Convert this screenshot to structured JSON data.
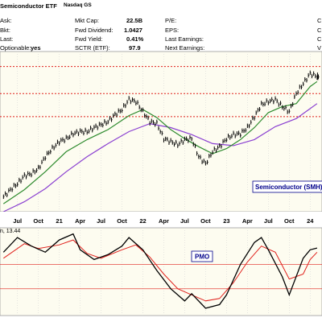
{
  "header": {
    "title": "Semiconductor ETF",
    "exchange": "Nasdaq GS",
    "ask_label": "Ask:",
    "bid_label": "Bkt:",
    "last_label": "Last:",
    "optionable_label": "Optionable:",
    "optionable_value": "yes",
    "mktcap_label": "Mkt Cap:",
    "mktcap_value": "22.5B",
    "fwd_div_label": "Fwd Dividend:",
    "fwd_div_value": "1.0427",
    "fwd_yield_label": "Fwd Yield:",
    "fwd_yield_value": "0.41%",
    "sctr_label": "SCTR (ETF):",
    "sctr_value": "97.9",
    "pe_label": "P/E:",
    "eps_label": "EPS:",
    "last_earnings_label": "Last Earnings:",
    "next_earnings_label": "Next Earnings:",
    "right_clip": [
      "C",
      "C",
      "C",
      "V"
    ]
  },
  "colors": {
    "price_panel_bg": "#fdfcf0",
    "price": "#000000",
    "sma_fast": "#2e8b2e",
    "sma_slow": "#8a3fd1",
    "resistance": "#e0201b",
    "pmo": "#000000",
    "pmo_signal": "#e0201b",
    "label_bg": "#ffffff",
    "label_border": "#00008b",
    "label_text": "#00008b"
  },
  "chart_data": [
    {
      "type": "line",
      "panel": "price",
      "annotation": "Semiconductor (SMH)",
      "x_tick_labels": [
        "Jul",
        "Oct",
        "21",
        "Apr",
        "Jul",
        "Oct",
        "22",
        "Apr",
        "Jul",
        "Oct",
        "23",
        "Apr",
        "Jul",
        "Oct",
        "24"
      ],
      "x_range": [
        "2020-05",
        "2024-02"
      ],
      "horizontal_levels": [
        185,
        158,
        135
      ],
      "price_series": [
        [
          "2020-05",
          55
        ],
        [
          "2020-06",
          62
        ],
        [
          "2020-07",
          68
        ],
        [
          "2020-08",
          76
        ],
        [
          "2020-09",
          78
        ],
        [
          "2020-10",
          83
        ],
        [
          "2020-11",
          95
        ],
        [
          "2020-12",
          103
        ],
        [
          "2021-01",
          110
        ],
        [
          "2021-02",
          113
        ],
        [
          "2021-03",
          118
        ],
        [
          "2021-04",
          120
        ],
        [
          "2021-05",
          120
        ],
        [
          "2021-06",
          124
        ],
        [
          "2021-07",
          127
        ],
        [
          "2021-08",
          130
        ],
        [
          "2021-09",
          137
        ],
        [
          "2021-10",
          142
        ],
        [
          "2021-11",
          152
        ],
        [
          "2021-12",
          150
        ],
        [
          "2022-01",
          140
        ],
        [
          "2022-02",
          130
        ],
        [
          "2022-03",
          128
        ],
        [
          "2022-04",
          113
        ],
        [
          "2022-05",
          110
        ],
        [
          "2022-06",
          107
        ],
        [
          "2022-07",
          112
        ],
        [
          "2022-08",
          113
        ],
        [
          "2022-09",
          95
        ],
        [
          "2022-10",
          88
        ],
        [
          "2022-11",
          100
        ],
        [
          "2022-12",
          105
        ],
        [
          "2023-01",
          113
        ],
        [
          "2023-02",
          117
        ],
        [
          "2023-03",
          118
        ],
        [
          "2023-04",
          124
        ],
        [
          "2023-05",
          135
        ],
        [
          "2023-06",
          147
        ],
        [
          "2023-07",
          150
        ],
        [
          "2023-08",
          152
        ],
        [
          "2023-09",
          145
        ],
        [
          "2023-10",
          140
        ],
        [
          "2023-11",
          158
        ],
        [
          "2023-12",
          168
        ],
        [
          "2024-01",
          178
        ],
        [
          "2024-02",
          175
        ]
      ],
      "sma_fast_series": [
        [
          "2020-05",
          48
        ],
        [
          "2020-08",
          62
        ],
        [
          "2020-11",
          80
        ],
        [
          "2021-02",
          100
        ],
        [
          "2021-05",
          112
        ],
        [
          "2021-08",
          122
        ],
        [
          "2021-11",
          136
        ],
        [
          "2022-01",
          142
        ],
        [
          "2022-03",
          134
        ],
        [
          "2022-05",
          122
        ],
        [
          "2022-07",
          113
        ],
        [
          "2022-09",
          105
        ],
        [
          "2022-11",
          98
        ],
        [
          "2023-01",
          103
        ],
        [
          "2023-03",
          112
        ],
        [
          "2023-05",
          124
        ],
        [
          "2023-07",
          139
        ],
        [
          "2023-09",
          145
        ],
        [
          "2023-11",
          148
        ],
        [
          "2024-01",
          165
        ],
        [
          "2024-02",
          170
        ]
      ],
      "sma_slow_series": [
        [
          "2020-05",
          40
        ],
        [
          "2020-08",
          50
        ],
        [
          "2020-11",
          63
        ],
        [
          "2021-02",
          80
        ],
        [
          "2021-05",
          95
        ],
        [
          "2021-08",
          108
        ],
        [
          "2021-11",
          120
        ],
        [
          "2022-02",
          128
        ],
        [
          "2022-05",
          124
        ],
        [
          "2022-08",
          117
        ],
        [
          "2022-11",
          108
        ],
        [
          "2023-02",
          106
        ],
        [
          "2023-05",
          112
        ],
        [
          "2023-08",
          125
        ],
        [
          "2023-11",
          133
        ],
        [
          "2024-02",
          148
        ]
      ]
    },
    {
      "type": "line",
      "panel": "indicator",
      "title": "PMO",
      "legend_text": "n, 13.44",
      "horizontal_levels": [
        0,
        -20
      ],
      "pmo_series": [
        [
          "2020-05",
          10
        ],
        [
          "2020-07",
          22
        ],
        [
          "2020-09",
          15
        ],
        [
          "2020-11",
          10
        ],
        [
          "2021-01",
          20
        ],
        [
          "2021-03",
          25
        ],
        [
          "2021-04",
          12
        ],
        [
          "2021-06",
          4
        ],
        [
          "2021-08",
          8
        ],
        [
          "2021-10",
          15
        ],
        [
          "2021-11",
          22
        ],
        [
          "2022-01",
          12
        ],
        [
          "2022-03",
          -5
        ],
        [
          "2022-05",
          -20
        ],
        [
          "2022-07",
          -30
        ],
        [
          "2022-08",
          -24
        ],
        [
          "2022-10",
          -36
        ],
        [
          "2022-12",
          -33
        ],
        [
          "2023-01",
          -25
        ],
        [
          "2023-03",
          0
        ],
        [
          "2023-05",
          18
        ],
        [
          "2023-06",
          22
        ],
        [
          "2023-07",
          12
        ],
        [
          "2023-09",
          -10
        ],
        [
          "2023-10",
          -25
        ],
        [
          "2023-12",
          5
        ],
        [
          "2024-01",
          12
        ],
        [
          "2024-02",
          13.44
        ]
      ],
      "signal_series": [
        [
          "2020-05",
          5
        ],
        [
          "2020-08",
          17
        ],
        [
          "2020-10",
          13
        ],
        [
          "2021-01",
          16
        ],
        [
          "2021-03",
          20
        ],
        [
          "2021-05",
          9
        ],
        [
          "2021-07",
          5
        ],
        [
          "2021-10",
          12
        ],
        [
          "2021-12",
          16
        ],
        [
          "2022-02",
          6
        ],
        [
          "2022-04",
          -8
        ],
        [
          "2022-06",
          -20
        ],
        [
          "2022-08",
          -25
        ],
        [
          "2022-10",
          -30
        ],
        [
          "2022-12",
          -28
        ],
        [
          "2023-02",
          -15
        ],
        [
          "2023-04",
          2
        ],
        [
          "2023-06",
          15
        ],
        [
          "2023-08",
          10
        ],
        [
          "2023-10",
          -12
        ],
        [
          "2023-12",
          -8
        ],
        [
          "2024-01",
          4
        ],
        [
          "2024-02",
          10
        ]
      ]
    }
  ]
}
